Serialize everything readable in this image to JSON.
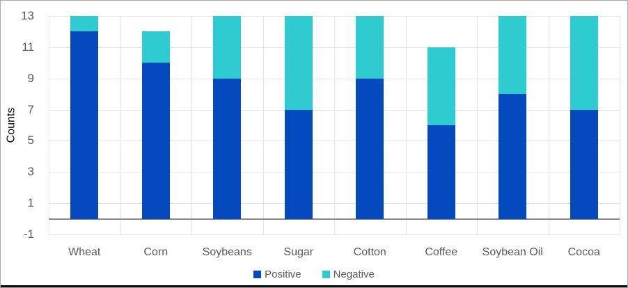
{
  "chart_data": {
    "type": "bar",
    "stacked": true,
    "title": "",
    "xlabel": "",
    "ylabel": "Counts",
    "categories": [
      "Wheat",
      "Corn",
      "Soybeans",
      "Sugar",
      "Cotton",
      "Coffee",
      "Soybean Oil",
      "Cocoa"
    ],
    "series": [
      {
        "name": "Positive",
        "color": "#0549be",
        "values": [
          12,
          10,
          9,
          7,
          9,
          6,
          8,
          7
        ]
      },
      {
        "name": "Negative",
        "color": "#2ecbd1",
        "values": [
          1,
          2,
          4,
          6,
          4,
          5,
          5,
          6
        ]
      }
    ],
    "ylim": [
      -1,
      13
    ],
    "yticks": [
      -1,
      1,
      3,
      5,
      7,
      9,
      11,
      13
    ],
    "grid": true,
    "legend_position": "bottom"
  },
  "styles": {
    "background": "#ffffff",
    "grid_color": "#e4e4e4",
    "axis_line_color": "#8a8a8a",
    "text_color": "#595959",
    "border_color": "#a3a9ae",
    "bottom_edge_color": "#0d0d0d"
  }
}
